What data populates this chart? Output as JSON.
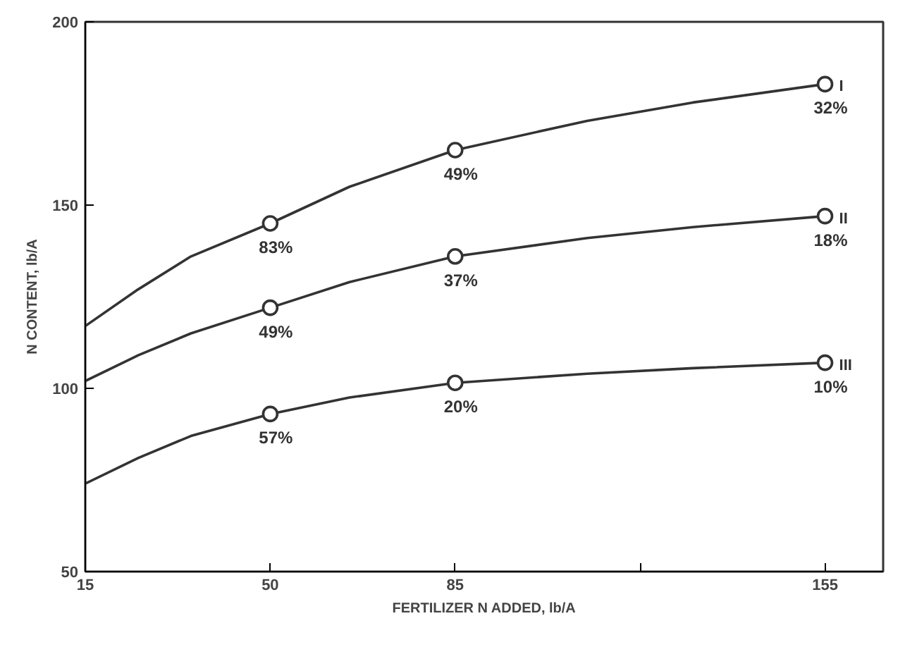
{
  "chart_data": {
    "type": "line",
    "xlabel": "FERTILIZER N ADDED, lb/A",
    "ylabel": "N CONTENT, lb/A",
    "xlim": [
      15,
      166
    ],
    "xticks": [
      15,
      50,
      85,
      {
        "value": 120,
        "label": null
      },
      155
    ],
    "ylim": [
      50,
      200
    ],
    "yticks": [
      50,
      100,
      150,
      200
    ],
    "grid": false,
    "series": [
      {
        "name": "I",
        "color": "#333333",
        "marker": "none",
        "x": [
          15,
          25,
          35,
          50,
          65,
          85,
          110,
          130,
          155
        ],
        "values": [
          117,
          127,
          136,
          145,
          155,
          165,
          173,
          178,
          183
        ]
      },
      {
        "name": "II",
        "color": "#333333",
        "marker": "none",
        "x": [
          15,
          25,
          35,
          50,
          65,
          85,
          110,
          130,
          155
        ],
        "values": [
          102,
          109,
          115,
          122,
          129,
          136,
          141,
          144,
          147
        ]
      },
      {
        "name": "III",
        "color": "#333333",
        "marker": "none",
        "x": [
          15,
          25,
          35,
          50,
          65,
          85,
          110,
          130,
          155
        ],
        "values": [
          74,
          81,
          87,
          93,
          97.5,
          101.5,
          104,
          105.5,
          107
        ]
      },
      {
        "type": "scatter",
        "color": "#333333",
        "marker": "circle",
        "x": [
          50,
          85,
          155
        ],
        "values": [
          145,
          165,
          183
        ]
      },
      {
        "type": "scatter",
        "color": "#333333",
        "marker": "circle",
        "x": [
          50,
          85,
          155
        ],
        "values": [
          122,
          136,
          147
        ]
      },
      {
        "type": "scatter",
        "color": "#333333",
        "marker": "circle",
        "x": [
          50,
          85,
          155
        ],
        "values": [
          93,
          101.5,
          107
        ]
      }
    ],
    "annotations": [
      {
        "text": "83%",
        "x": 50,
        "y": 145
      },
      {
        "text": "49%",
        "x": 85,
        "y": 165
      },
      {
        "text": "32%",
        "x": 155,
        "y": 183
      },
      {
        "text": "49%",
        "x": 50,
        "y": 122
      },
      {
        "text": "37%",
        "x": 85,
        "y": 136
      },
      {
        "text": "18%",
        "x": 155,
        "y": 147
      },
      {
        "text": "57%",
        "x": 50,
        "y": 93
      },
      {
        "text": "20%",
        "x": 85,
        "y": 101.5
      },
      {
        "text": "10%",
        "x": 155,
        "y": 107
      }
    ]
  }
}
